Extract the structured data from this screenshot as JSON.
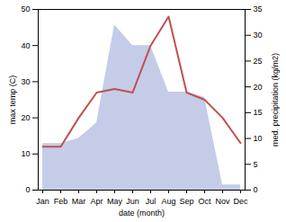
{
  "chart_data": {
    "type": "line",
    "xlabel": "date (month)",
    "ylabel": "max temp (C)",
    "y2label": "med. precipitation (kg/m2)",
    "categories": [
      "Jan",
      "Feb",
      "Mar",
      "Apr",
      "May",
      "Jun",
      "Jul",
      "Aug",
      "Sep",
      "Oct",
      "Nov",
      "Dec"
    ],
    "series": [
      {
        "type": "area",
        "axis": "y2",
        "color": "#c5cce8",
        "values": [
          9,
          9,
          10,
          13,
          32,
          28,
          28,
          19,
          19,
          18,
          1,
          1
        ]
      },
      {
        "type": "line",
        "color": "#c0504d",
        "values": [
          12,
          12,
          20,
          27,
          28,
          27,
          40,
          48,
          27,
          25,
          20,
          13
        ]
      }
    ],
    "ylim": [
      0,
      50
    ],
    "yticks": [
      0,
      10,
      20,
      30,
      40,
      50
    ],
    "y2lim": [
      0,
      35
    ],
    "y2ticks": [
      0,
      5,
      10,
      15,
      20,
      25,
      30,
      35
    ],
    "grid": false
  }
}
